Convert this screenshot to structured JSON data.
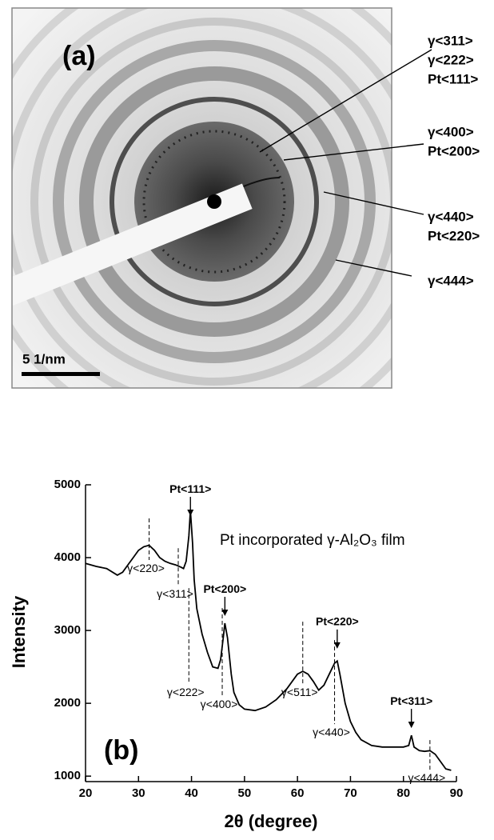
{
  "panel_a": {
    "label": "(a)",
    "scale_bar": "5 1/nm",
    "ring_labels": [
      [
        "γ<311>",
        "γ<222>",
        "Pt<111>"
      ],
      [
        "γ<400>",
        "Pt<200>"
      ],
      [
        "γ<440>",
        "Pt<220>"
      ],
      [
        "γ<444>"
      ]
    ]
  },
  "chart_data": {
    "type": "line",
    "panel_label": "(b)",
    "xlabel": "2θ (degree)",
    "ylabel": "Intensity",
    "annotation": "Pt incorporated γ-Al₂O₃ film",
    "color": "#000000",
    "xlim": [
      20,
      90
    ],
    "xticks": [
      20,
      30,
      40,
      50,
      60,
      70,
      80,
      90
    ],
    "ylim": [
      925,
      5000
    ],
    "yticks": [
      1000,
      2000,
      3000,
      4000,
      5000
    ],
    "x": [
      20,
      22,
      24,
      26,
      27,
      28,
      29,
      30,
      31,
      32,
      33,
      34,
      35,
      36,
      37,
      38,
      38.5,
      39,
      39.5,
      39.8,
      40.2,
      40.5,
      41,
      42,
      43,
      44,
      45,
      45.5,
      46,
      46.3,
      46.8,
      47.5,
      48,
      49,
      50,
      52,
      54,
      56,
      58,
      59,
      60,
      61,
      62,
      63,
      64,
      65,
      66,
      67,
      67.5,
      68,
      69,
      70,
      71,
      72,
      74,
      76,
      78,
      80,
      81,
      81.5,
      82,
      83,
      84,
      85,
      86,
      87,
      88,
      89
    ],
    "values": [
      3920,
      3880,
      3850,
      3760,
      3800,
      3900,
      4000,
      4100,
      4150,
      4170,
      4100,
      4000,
      3950,
      3920,
      3900,
      3870,
      3850,
      3950,
      4300,
      4650,
      4200,
      3700,
      3300,
      2950,
      2700,
      2500,
      2480,
      2600,
      2900,
      3100,
      2900,
      2400,
      2150,
      1980,
      1920,
      1900,
      1950,
      2050,
      2200,
      2300,
      2400,
      2440,
      2400,
      2300,
      2180,
      2250,
      2400,
      2550,
      2580,
      2400,
      2000,
      1750,
      1600,
      1500,
      1420,
      1400,
      1400,
      1400,
      1420,
      1560,
      1400,
      1350,
      1340,
      1350,
      1300,
      1200,
      1100,
      1080
    ],
    "peak_labels": [
      {
        "text": "Pt<111>",
        "x": 39.8,
        "arrow_tip": 4571
      },
      {
        "text": "Pt<200>",
        "x": 46.3,
        "arrow_tip": 3198
      },
      {
        "text": "Pt<220>",
        "x": 67.5,
        "arrow_tip": 2750
      },
      {
        "text": "Pt<311>",
        "x": 81.5,
        "arrow_tip": 1660
      }
    ],
    "gamma_markers": [
      {
        "text": "γ<220>",
        "x": 32,
        "y_top": 4538,
        "y_bottom": 3967
      },
      {
        "text": "γ<311>",
        "x": 37.5,
        "y_top": 4130,
        "y_bottom": 3615
      },
      {
        "text": "γ<222>",
        "x": 39.5,
        "y_top": 3582,
        "y_bottom": 2264
      },
      {
        "text": "γ<400>",
        "x": 45.8,
        "y_top": 3308,
        "y_bottom": 2099
      },
      {
        "text": "γ<511>",
        "x": 61,
        "y_top": 3120,
        "y_bottom": 2264
      },
      {
        "text": "γ<440>",
        "x": 67,
        "y_top": 2868,
        "y_bottom": 1714
      },
      {
        "text": "γ<444>",
        "x": 85,
        "y_top": 1495,
        "y_bottom": 1088
      }
    ]
  }
}
